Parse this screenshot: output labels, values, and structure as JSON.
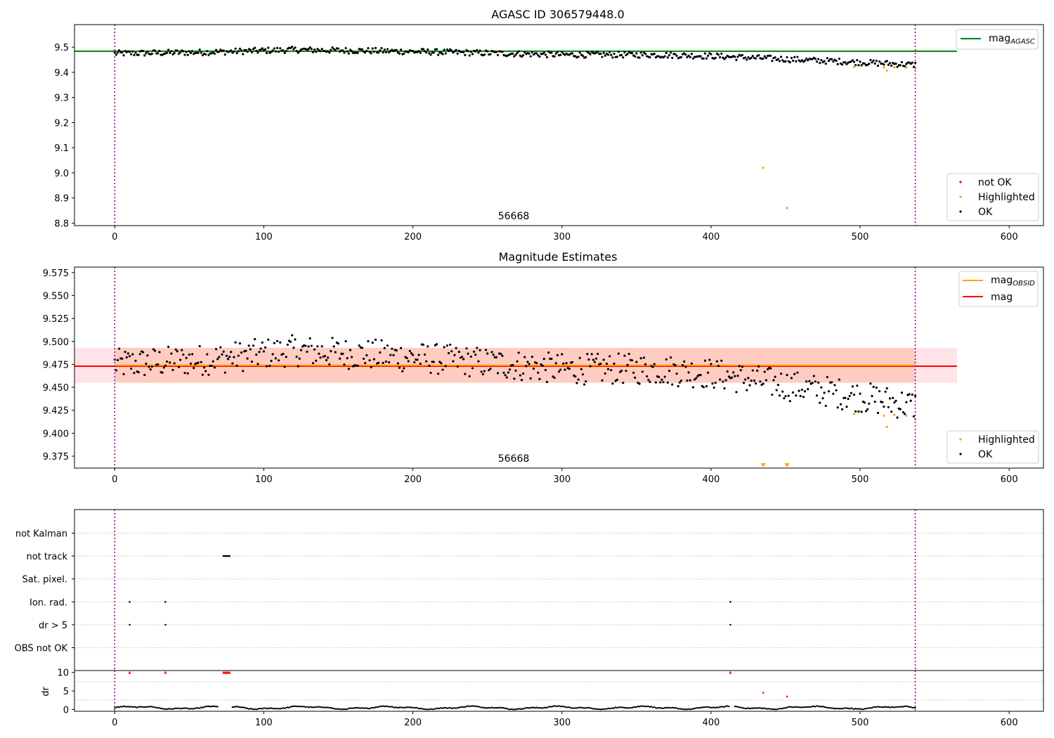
{
  "figure_title": "AGASC ID 306579448.0",
  "chart_data": [
    {
      "id": "agasc",
      "type": "scatter",
      "title": "AGASC ID 306579448.0",
      "xlabel": "",
      "ylabel": "",
      "xlim": [
        -27,
        623
      ],
      "ylim": [
        8.79,
        9.59
      ],
      "xticks": [
        "0",
        "100",
        "200",
        "300",
        "400",
        "500",
        "600"
      ],
      "yticks": [
        "8.8",
        "8.9",
        "9.0",
        "9.1",
        "9.2",
        "9.3",
        "9.4",
        "9.5"
      ],
      "obsid_annotation": "56668",
      "obs_boundaries": [
        0,
        537
      ],
      "reference_line": {
        "name": "mag_AGASC",
        "label_main": "mag",
        "label_sub": "AGASC",
        "y": 9.484,
        "x_range": [
          -27,
          565
        ],
        "color": "#008000"
      },
      "legend_lines": [
        {
          "main": "mag",
          "sub": "AGASC",
          "color": "#008000"
        }
      ],
      "legend_points": [
        {
          "label": "not OK",
          "color": "#ff0000"
        },
        {
          "label": "Highlighted",
          "color": "#ffa500"
        },
        {
          "label": "OK",
          "color": "#000000"
        }
      ],
      "trend_segments": [
        {
          "x": [
            0,
            60,
            120,
            180,
            240,
            300,
            360,
            400,
            440,
            480,
            537
          ],
          "y": [
            9.475,
            9.48,
            9.49,
            9.485,
            9.478,
            9.47,
            9.47,
            9.465,
            9.455,
            9.445,
            9.43
          ]
        }
      ],
      "ok_range": [
        0,
        537
      ],
      "scatter_amplitude": 0.012,
      "highlighted_points": [
        {
          "x": 496,
          "y": 9.421
        },
        {
          "x": 516,
          "y": 9.419
        },
        {
          "x": 518,
          "y": 9.407
        },
        {
          "x": 523,
          "y": 9.42
        },
        {
          "x": 531,
          "y": 9.419
        },
        {
          "x": 537,
          "y": 9.415
        },
        {
          "x": 435,
          "y": 9.02
        },
        {
          "x": 451,
          "y": 8.86
        }
      ],
      "not_ok_points": []
    },
    {
      "id": "mag-estimates",
      "type": "scatter",
      "title": "Magnitude Estimates",
      "xlabel": "",
      "ylabel": "",
      "xlim": [
        -27,
        623
      ],
      "ylim": [
        9.362,
        9.581
      ],
      "xticks": [
        "0",
        "100",
        "200",
        "300",
        "400",
        "500",
        "600"
      ],
      "yticks": [
        "9.375",
        "9.400",
        "9.425",
        "9.450",
        "9.475",
        "9.500",
        "9.525",
        "9.550",
        "9.575"
      ],
      "obsid_annotation": "56668",
      "obs_boundaries": [
        0,
        537
      ],
      "mag_band": {
        "y_low": 9.455,
        "y_high": 9.493,
        "x_range": [
          -27,
          565
        ],
        "color": "#ffc0cb"
      },
      "obsid_band": {
        "y_low": 9.455,
        "y_high": 9.493,
        "x_range": [
          0,
          537
        ],
        "color": "#ffa07a"
      },
      "mag_line": {
        "y": 9.473,
        "color": "#ff0000"
      },
      "mag_obsid_line": {
        "y": 9.474,
        "color": "#ffa500"
      },
      "legend_lines": [
        {
          "main": "mag",
          "sub": "OBSID",
          "color": "#ffa500"
        },
        {
          "main": "mag",
          "sub": "",
          "color": "#ff0000"
        }
      ],
      "legend_points": [
        {
          "label": "Highlighted",
          "color": "#ffa500"
        },
        {
          "label": "OK",
          "color": "#000000"
        }
      ],
      "highlighted_points": [
        {
          "x": 496,
          "y": 9.421
        },
        {
          "x": 516,
          "y": 9.419
        },
        {
          "x": 518,
          "y": 9.407
        },
        {
          "x": 523,
          "y": 9.42
        },
        {
          "x": 531,
          "y": 9.419
        },
        {
          "x": 537,
          "y": 9.415
        }
      ],
      "offscale_markers": [
        {
          "x": 435
        },
        {
          "x": 451
        }
      ],
      "scatter_amplitude": 0.017
    },
    {
      "id": "flags",
      "type": "scatter",
      "title": "",
      "xlim": [
        -27,
        623
      ],
      "xticks": [
        "0",
        "100",
        "200",
        "300",
        "400",
        "500",
        "600"
      ],
      "obs_boundaries": [
        0,
        537
      ],
      "flag_rows": [
        "OBS not OK",
        "dr > 5",
        "Ion. rad.",
        "Sat. pixel.",
        "not track",
        "not Kalman"
      ],
      "flag_points": {
        "not track": [
          73,
          74,
          75,
          76,
          77
        ],
        "Sat. pixel.": [],
        "Ion. rad.": [
          10,
          34,
          413
        ],
        "dr > 5": [
          10,
          34,
          413
        ],
        "OBS not OK": [],
        "not Kalman": []
      }
    },
    {
      "id": "dr",
      "type": "scatter",
      "title": "",
      "xlabel": "",
      "ylabel": "dr",
      "xlim": [
        -27,
        623
      ],
      "ylim": [
        -0.5,
        10.5
      ],
      "xticks": [
        "0",
        "100",
        "200",
        "300",
        "400",
        "500",
        "600"
      ],
      "yticks": [
        "0",
        "5",
        "10"
      ],
      "obs_boundaries": [
        0,
        537
      ],
      "red_markers": [
        10,
        34,
        73,
        74,
        75,
        76,
        77,
        413
      ],
      "highlighted_points": [
        {
          "x": 435,
          "y": 4.5
        },
        {
          "x": 451,
          "y": 3.5
        }
      ],
      "baseline_gaps": [
        [
          70,
          78
        ],
        [
          413,
          415
        ]
      ],
      "baseline_range": [
        0,
        537
      ]
    }
  ]
}
